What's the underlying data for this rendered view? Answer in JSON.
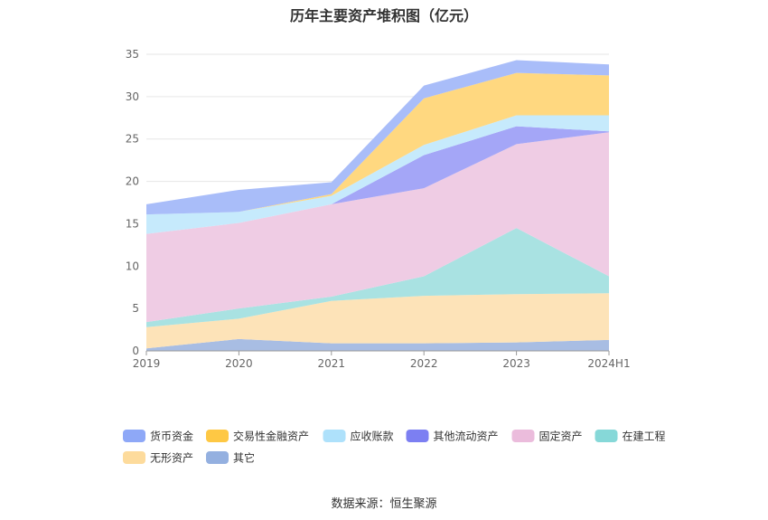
{
  "title": "历年主要资产堆积图（亿元）",
  "source": "数据来源：恒生聚源",
  "chart_data": {
    "type": "area",
    "stacked": true,
    "categories": [
      "2019",
      "2020",
      "2021",
      "2022",
      "2023",
      "2024H1"
    ],
    "ylim": [
      0,
      35
    ],
    "yticks": [
      0,
      5,
      10,
      15,
      20,
      25,
      30,
      35
    ],
    "grid": true,
    "legend_position": "bottom",
    "series": [
      {
        "name": "其它",
        "color": "#a8bde3",
        "legend_color": "#94b0e0",
        "values": [
          0.3,
          1.4,
          0.9,
          0.9,
          1.0,
          1.3
        ]
      },
      {
        "name": "无形资产",
        "color": "#fde3b8",
        "legend_color": "#fddb9c",
        "values": [
          2.5,
          2.4,
          5.0,
          5.6,
          5.7,
          5.5
        ]
      },
      {
        "name": "在建工程",
        "color": "#a9e2e2",
        "legend_color": "#86d8d8",
        "values": [
          0.6,
          1.2,
          0.5,
          2.3,
          7.8,
          2.0
        ]
      },
      {
        "name": "固定资产",
        "color": "#efcce4",
        "legend_color": "#ebbcdc",
        "values": [
          10.4,
          10.1,
          10.9,
          10.4,
          9.9,
          17.0
        ]
      },
      {
        "name": "其他流动资产",
        "color": "#a4a6f7",
        "legend_color": "#7c7ff2",
        "values": [
          0.0,
          0.0,
          0.0,
          3.9,
          2.1,
          0.1
        ]
      },
      {
        "name": "应收账款",
        "color": "#c6eafc",
        "legend_color": "#aee1fb",
        "values": [
          2.3,
          1.3,
          1.0,
          1.2,
          1.3,
          1.9
        ]
      },
      {
        "name": "交易性金融资产",
        "color": "#ffd880",
        "legend_color": "#fec844",
        "values": [
          0.0,
          0.0,
          0.2,
          5.5,
          5.0,
          4.7
        ]
      },
      {
        "name": "货币资金",
        "color": "#a9bdf9",
        "legend_color": "#8ea8f7",
        "values": [
          1.2,
          2.6,
          1.4,
          1.5,
          1.5,
          1.3
        ]
      }
    ],
    "legend_order": [
      "货币资金",
      "交易性金融资产",
      "应收账款",
      "其他流动资产",
      "固定资产",
      "在建工程",
      "无形资产",
      "其它"
    ]
  }
}
